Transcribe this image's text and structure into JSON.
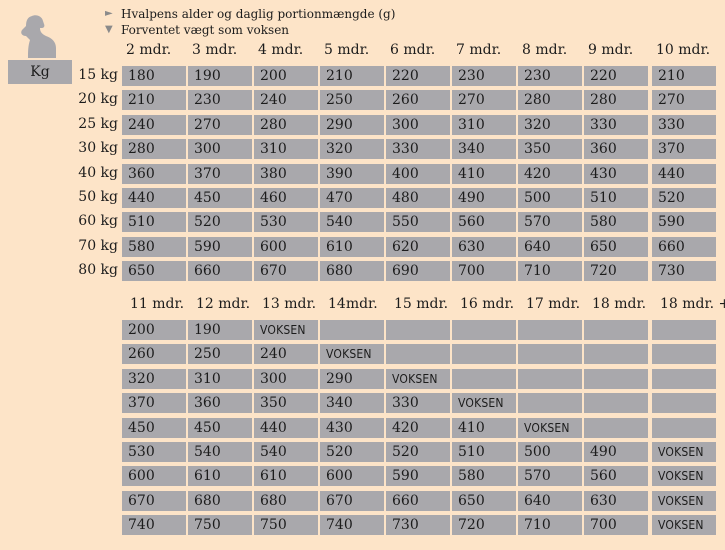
{
  "legend": {
    "line1": "Hvalpens alder og daglig portionmængde (g)",
    "line2": "Forventet vægt som voksen"
  },
  "kg_label": "Kg",
  "table1": {
    "headers": [
      "2 mdr.",
      "3 mdr.",
      "4 mdr.",
      "5 mdr.",
      "6 mdr.",
      "7 mdr.",
      "8 mdr.",
      "9 mdr.",
      "10 mdr."
    ],
    "rows": [
      {
        "label": "15 kg",
        "values": [
          "180",
          "190",
          "200",
          "210",
          "220",
          "230",
          "230",
          "220",
          "210"
        ]
      },
      {
        "label": "20 kg",
        "values": [
          "210",
          "230",
          "240",
          "250",
          "260",
          "270",
          "280",
          "280",
          "270"
        ]
      },
      {
        "label": "25 kg",
        "values": [
          "240",
          "270",
          "280",
          "290",
          "300",
          "310",
          "320",
          "330",
          "330"
        ]
      },
      {
        "label": "30 kg",
        "values": [
          "280",
          "300",
          "310",
          "320",
          "330",
          "340",
          "350",
          "360",
          "370"
        ]
      },
      {
        "label": "40 kg",
        "values": [
          "360",
          "370",
          "380",
          "390",
          "400",
          "410",
          "420",
          "430",
          "440"
        ]
      },
      {
        "label": "50 kg",
        "values": [
          "440",
          "450",
          "460",
          "470",
          "480",
          "490",
          "500",
          "510",
          "520"
        ]
      },
      {
        "label": "60 kg",
        "values": [
          "510",
          "520",
          "530",
          "540",
          "550",
          "560",
          "570",
          "580",
          "590"
        ]
      },
      {
        "label": "70 kg",
        "values": [
          "580",
          "590",
          "600",
          "610",
          "620",
          "630",
          "640",
          "650",
          "660"
        ]
      },
      {
        "label": "80 kg",
        "values": [
          "650",
          "660",
          "670",
          "680",
          "690",
          "700",
          "710",
          "720",
          "730"
        ]
      }
    ]
  },
  "table2": {
    "headers": [
      "11 mdr.",
      "12 mdr.",
      "13 mdr.",
      "14mdr.",
      "15 mdr.",
      "16 mdr.",
      "17 mdr.",
      "18 mdr.",
      "18 mdr. +"
    ],
    "rows": [
      [
        "200",
        "190",
        "VOKSEN",
        "",
        "",
        "",
        "",
        "",
        ""
      ],
      [
        "260",
        "250",
        "240",
        "VOKSEN",
        "",
        "",
        "",
        "",
        ""
      ],
      [
        "320",
        "310",
        "300",
        "290",
        "VOKSEN",
        "",
        "",
        "",
        ""
      ],
      [
        "370",
        "360",
        "350",
        "340",
        "330",
        "VOKSEN",
        "",
        "",
        ""
      ],
      [
        "450",
        "450",
        "440",
        "430",
        "420",
        "410",
        "VOKSEN",
        "",
        ""
      ],
      [
        "530",
        "540",
        "540",
        "520",
        "520",
        "510",
        "500",
        "490",
        "VOKSEN"
      ],
      [
        "600",
        "610",
        "610",
        "600",
        "590",
        "580",
        "570",
        "560",
        "VOKSEN"
      ],
      [
        "670",
        "680",
        "680",
        "670",
        "660",
        "650",
        "640",
        "630",
        "VOKSEN"
      ],
      [
        "740",
        "750",
        "750",
        "740",
        "730",
        "720",
        "710",
        "700",
        "VOKSEN"
      ]
    ]
  }
}
